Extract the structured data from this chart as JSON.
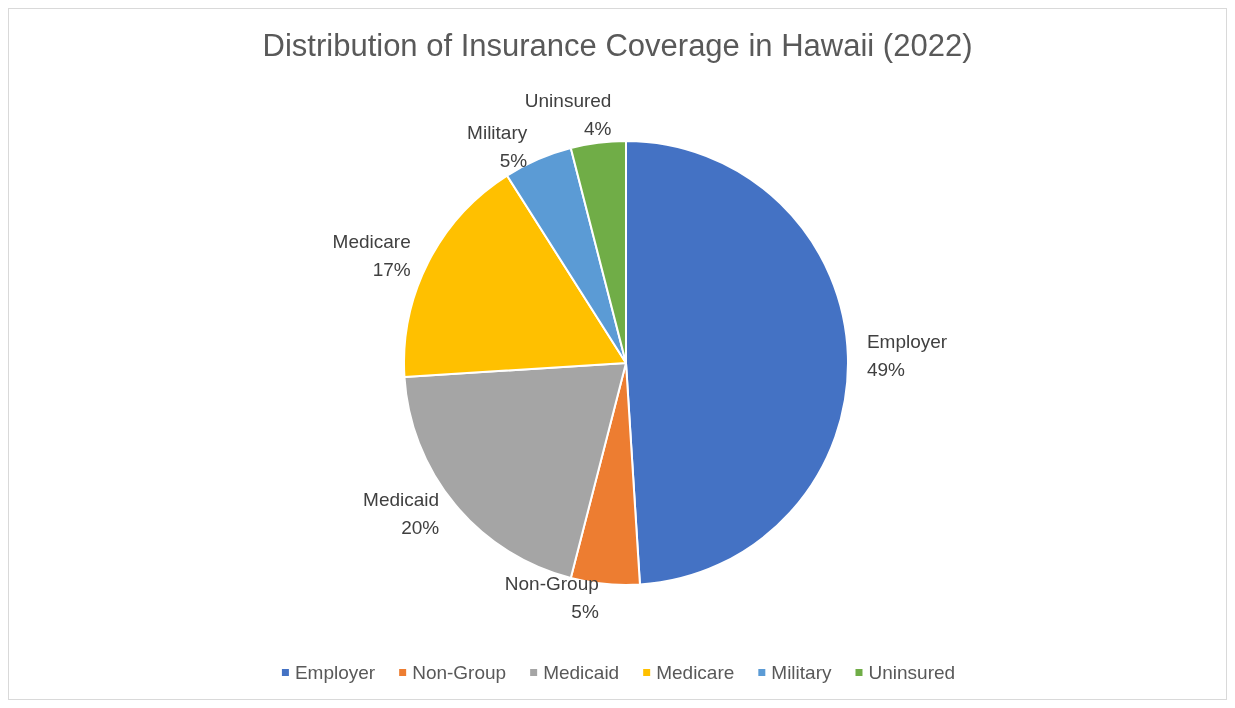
{
  "chart_data": {
    "type": "pie",
    "title": "Distribution of Insurance Coverage in Hawaii (2022)",
    "categories": [
      "Employer",
      "Non-Group",
      "Medicaid",
      "Medicare",
      "Military",
      "Uninsured"
    ],
    "values": [
      49,
      5,
      20,
      17,
      5,
      4
    ],
    "colors": [
      "#4472c4",
      "#ed7d31",
      "#a5a5a5",
      "#ffc000",
      "#5b9bd5",
      "#70ad47"
    ],
    "value_labels": [
      "49%",
      "5%",
      "20%",
      "17%",
      "5%",
      "4%"
    ],
    "legend": "bottom"
  }
}
